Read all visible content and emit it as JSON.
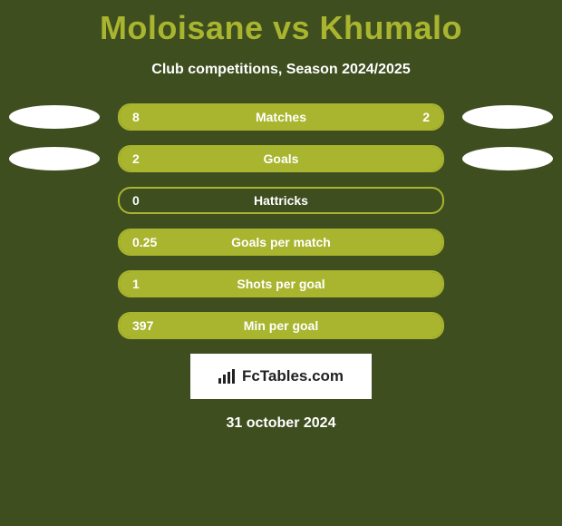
{
  "title": {
    "left": "Moloisane",
    "vs": "vs",
    "right": "Khumalo",
    "color": "#a9b52e",
    "fontsize": 36
  },
  "subtitle": {
    "text": "Club competitions, Season 2024/2025",
    "fontsize": 16,
    "color": "#ffffff"
  },
  "background_color": "#3e4e1f",
  "avatar_color": "#ffffff",
  "bar_style": {
    "fill_color": "#a9b52e",
    "border_color": "#a9b52e",
    "text_color": "#ffffff",
    "height": 30,
    "radius": 14,
    "label_fontsize": 14,
    "value_fontsize": 14
  },
  "rows": [
    {
      "label": "Matches",
      "left_value": "8",
      "right_value": "2",
      "left_pct": 80,
      "right_pct": 20,
      "show_avatars": true
    },
    {
      "label": "Goals",
      "left_value": "2",
      "right_value": "",
      "left_pct": 100,
      "right_pct": 0,
      "show_avatars": true
    },
    {
      "label": "Hattricks",
      "left_value": "0",
      "right_value": "",
      "left_pct": 0,
      "right_pct": 0,
      "show_avatars": false
    },
    {
      "label": "Goals per match",
      "left_value": "0.25",
      "right_value": "",
      "left_pct": 100,
      "right_pct": 0,
      "show_avatars": false
    },
    {
      "label": "Shots per goal",
      "left_value": "1",
      "right_value": "",
      "left_pct": 100,
      "right_pct": 0,
      "show_avatars": false
    },
    {
      "label": "Min per goal",
      "left_value": "397",
      "right_value": "",
      "left_pct": 100,
      "right_pct": 0,
      "show_avatars": false
    }
  ],
  "branding": {
    "text": "FcTables.com",
    "bg": "#ffffff",
    "fg": "#222222"
  },
  "date": {
    "text": "31 october 2024",
    "fontsize": 16
  }
}
